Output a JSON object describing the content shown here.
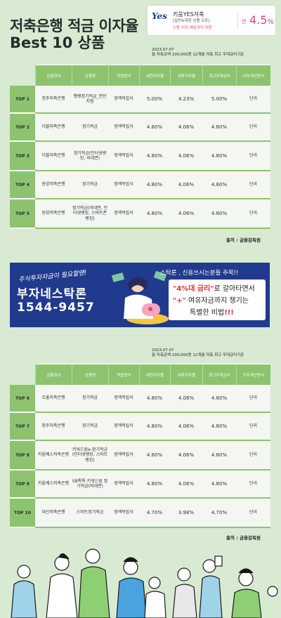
{
  "header": {
    "title_line1": "저축은행 적금 이자율",
    "title_line2": "Best 10 상품"
  },
  "ad": {
    "logo": "Yes",
    "name": "키움YES저축",
    "sub": "[일반&대환 상품 오픈]",
    "note": "신용 이자·예담까지 대환",
    "rate_prefix": "연",
    "rate_value": "4.5",
    "rate_unit": "%"
  },
  "table1": {
    "note_date": "2023.07.07",
    "note_text": "월 저축금액 100,000원 12개월 저축 최고 우대금리기준",
    "headers": [
      "",
      "금융회사",
      "상품명",
      "적립방식",
      "세전이자율",
      "세후이자율",
      "최고우대금리",
      "이자계산방식"
    ],
    "rows": [
      {
        "rank": "TOP 1",
        "bank": "청주저축은행",
        "product": "햇뱅정기적금_천안지점",
        "method": "정액적립식",
        "pre": "5.00%",
        "post": "4.23%",
        "max": "5.00%",
        "calc": "단리"
      },
      {
        "rank": "TOP 2",
        "bank": "더블저축은행",
        "product": "정기적금",
        "method": "정액적립식",
        "pre": "4.80%",
        "post": "4.06%",
        "max": "4.80%",
        "calc": "단리"
      },
      {
        "rank": "TOP 3",
        "bank": "더블저축은행",
        "product": "정기적금(인터넷뱅킹, 비대면)",
        "method": "정액적립식",
        "pre": "4.80%",
        "post": "4.06%",
        "max": "4.80%",
        "calc": "단리"
      },
      {
        "rank": "TOP 4",
        "bank": "동양저축은행",
        "product": "정기적금",
        "method": "정액적립식",
        "pre": "4.80%",
        "post": "4.06%",
        "max": "4.80%",
        "calc": "단리"
      },
      {
        "rank": "TOP 5",
        "bank": "동양저축은행",
        "product": "정기적금(비대면, 인터넷뱅킹, 스마트폰뱅킹)",
        "method": "정액적립식",
        "pre": "4.80%",
        "post": "4.06%",
        "max": "4.80%",
        "calc": "단리"
      }
    ],
    "source": "출처 : 금융감독원"
  },
  "banner": {
    "top": "주식투자자금이 필요할땐!",
    "name": "부자네스탁론",
    "phone": "1544-9457",
    "question": "스탁론 , 신용쓰시는분들 주목!!",
    "line1_hl": "\"4%대 금리\"",
    "line1_rest": "로 갈아타면서",
    "line2_hl": "\"+\"",
    "line2_rest": " 여유자금까지 챙기는",
    "line3_pre": "특별한 비법",
    "line3_hl": "!!!"
  },
  "table2": {
    "note_date": "2023.07.07",
    "note_text": "월 저축금액 100,000원 12개월 저축 최고 우대금리기준",
    "headers": [
      "",
      "금융회사",
      "상품명",
      "적립방식",
      "세전이자율",
      "세후이자율",
      "최고우대금리",
      "이자계산방식"
    ],
    "rows": [
      {
        "rank": "TOP 6",
        "bank": "조흥저축은행",
        "product": "정기적금",
        "method": "정액적립식",
        "pre": "4.80%",
        "post": "4.06%",
        "max": "4.80%",
        "calc": "단리"
      },
      {
        "rank": "TOP 7",
        "bank": "청주저축은행",
        "product": "정기적금",
        "method": "정액적립식",
        "pre": "4.80%",
        "post": "4.06%",
        "max": "4.80%",
        "calc": "단리"
      },
      {
        "rank": "TOP 8",
        "bank": "키움예스저축은행",
        "product": "키워드림e-정기적금(인터넷뱅킹, 스마트뱅킹)",
        "method": "정액적립식",
        "pre": "4.80%",
        "post": "4.06%",
        "max": "4.80%",
        "calc": "단리"
      },
      {
        "rank": "TOP 9",
        "bank": "키움예스저축은행",
        "product": "SB톡톡 키워드림 정기적금(비대면)",
        "method": "정액적립식",
        "pre": "4.80%",
        "post": "4.06%",
        "max": "4.80%",
        "calc": "단리"
      },
      {
        "rank": "TOP 10",
        "bank": "대신저축은행",
        "product": "스마트정기적금",
        "method": "정액적립식",
        "pre": "4.70%",
        "post": "3.98%",
        "max": "4.70%",
        "calc": "단리"
      }
    ],
    "source": "출처 : 금융감독원"
  },
  "colors": {
    "background": "#d9ead3",
    "table_green": "#8dc36f",
    "banner_blue": "#203a8d",
    "highlight_red": "#e32f2f",
    "ad_pink": "#e0467c"
  }
}
